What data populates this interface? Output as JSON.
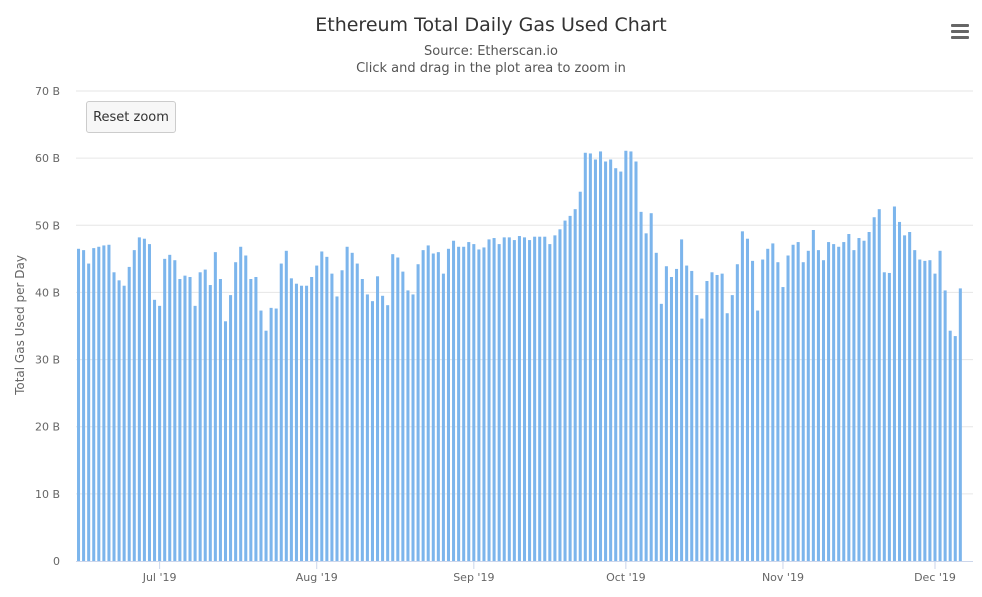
{
  "header": {
    "title": "Ethereum Total Daily Gas Used Chart",
    "subtitle": "Source: Etherscan.io",
    "instruction": "Click and drag in the plot area to zoom in"
  },
  "controls": {
    "reset_zoom_label": "Reset zoom",
    "menu_icon": "hamburger-menu-icon"
  },
  "colors": {
    "bar": "#7cb5ec",
    "grid": "#e6e6e6",
    "axis_text": "#666666"
  },
  "chart_data": {
    "type": "bar",
    "title": "Ethereum Total Daily Gas Used Chart",
    "subtitle": "Source: Etherscan.io",
    "xlabel": "",
    "ylabel": "Total Gas Used per Day",
    "ylim": [
      0,
      70
    ],
    "yticks": [
      0,
      10,
      20,
      30,
      40,
      50,
      60,
      70
    ],
    "ytick_labels": [
      "0",
      "10 B",
      "20 B",
      "30 B",
      "40 B",
      "50 B",
      "60 B",
      "70 B"
    ],
    "xtick_labels": [
      {
        "label": "Jul '19",
        "date": "2019-07-01"
      },
      {
        "label": "Aug '19",
        "date": "2019-08-01"
      },
      {
        "label": "Sep '19",
        "date": "2019-09-01"
      },
      {
        "label": "Oct '19",
        "date": "2019-10-01"
      },
      {
        "label": "Nov '19",
        "date": "2019-11-01"
      },
      {
        "label": "Dec '19",
        "date": "2019-12-01"
      }
    ],
    "grid": true,
    "legend": "none",
    "unit": "B",
    "x_start": "2019-06-15",
    "x_end": "2019-12-08",
    "values": [
      46.5,
      46.3,
      44.3,
      46.6,
      46.8,
      47.0,
      47.1,
      43.0,
      41.8,
      41.0,
      43.8,
      46.3,
      48.2,
      48.0,
      47.2,
      38.9,
      38.0,
      45.0,
      45.6,
      44.8,
      42.0,
      42.5,
      42.3,
      38.0,
      43.0,
      43.4,
      41.1,
      46.0,
      42.0,
      35.7,
      39.6,
      44.5,
      46.8,
      45.5,
      42.0,
      42.3,
      37.3,
      34.3,
      37.7,
      37.6,
      44.3,
      46.2,
      42.1,
      41.3,
      41.0,
      41.0,
      42.3,
      44.0,
      46.1,
      45.3,
      42.8,
      39.4,
      43.3,
      46.8,
      45.9,
      44.3,
      42.0,
      39.7,
      38.7,
      42.4,
      39.5,
      38.1,
      45.7,
      45.2,
      43.1,
      40.3,
      39.7,
      44.2,
      46.3,
      47.0,
      45.8,
      46.0,
      42.8,
      46.5,
      47.7,
      46.8,
      46.8,
      47.5,
      47.2,
      46.4,
      46.7,
      47.9,
      48.1,
      47.2,
      48.2,
      48.2,
      47.8,
      48.4,
      48.2,
      47.8,
      48.3,
      48.3,
      48.3,
      47.2,
      48.5,
      49.4,
      50.7,
      51.4,
      52.4,
      55.0,
      60.8,
      60.7,
      59.8,
      61.0,
      59.5,
      59.8,
      58.5,
      58.0,
      61.1,
      61.0,
      59.5,
      52.0,
      48.8,
      51.8,
      45.9,
      38.3,
      43.9,
      42.3,
      43.5,
      47.9,
      44.0,
      43.2,
      39.6,
      36.1,
      41.7,
      43.0,
      42.6,
      42.8,
      36.9,
      39.6,
      44.2,
      49.1,
      48.0,
      44.7,
      37.3,
      44.9,
      46.5,
      47.3,
      44.5,
      40.8,
      45.5,
      47.1,
      47.5,
      44.5,
      46.2,
      49.3,
      46.3,
      44.8,
      47.5,
      47.2,
      46.8,
      47.5,
      48.7,
      46.3,
      48.1,
      47.7,
      49.0,
      51.2,
      52.4,
      43.0,
      42.9,
      52.8,
      50.5,
      48.5,
      49.0,
      46.3,
      44.9,
      44.7,
      44.8,
      42.8,
      46.2,
      40.3,
      34.3,
      33.5,
      40.6
    ]
  }
}
